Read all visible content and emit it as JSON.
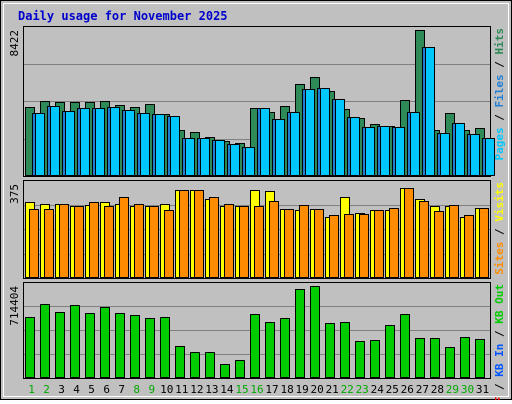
{
  "chart_data": {
    "type": "bar",
    "title": "Daily usage for November 2025",
    "categories": [
      "1",
      "2",
      "3",
      "4",
      "5",
      "6",
      "7",
      "8",
      "9",
      "10",
      "11",
      "12",
      "13",
      "14",
      "15",
      "16",
      "17",
      "18",
      "19",
      "20",
      "21",
      "22",
      "23",
      "24",
      "25",
      "26",
      "27",
      "28",
      "29",
      "30",
      "31"
    ],
    "weekend_days": [
      "1",
      "2",
      "8",
      "9",
      "15",
      "16",
      "22",
      "23",
      "29",
      "30"
    ],
    "panels": [
      {
        "id": "hits",
        "max_label": "8422",
        "ylim": [
          0,
          8422
        ],
        "series": [
          {
            "name": "Hits",
            "color": "#2e8b57",
            "values": [
              3910,
              4290,
              4190,
              4190,
              4190,
              4290,
              4040,
              3900,
              4090,
              3500,
              2640,
              2500,
              2200,
              1990,
              1860,
              3860,
              3660,
              4000,
              5260,
              5660,
              4810,
              3800,
              3300,
              2940,
              2860,
              4350,
              8320,
              2620,
              3570,
              2600,
              2740
            ]
          },
          {
            "name": "Files",
            "color": "#1f7fd6",
            "values": [
              3600,
              4010,
              3690,
              3890,
              3860,
              3930,
              3740,
              3610,
              3550,
              3420,
              2150,
              2160,
              2060,
              1820,
              1630,
              3860,
              3270,
              3660,
              4960,
              5020,
              4360,
              3360,
              2810,
              2820,
              2800,
              3650,
              7330,
              2450,
              3030,
              2410,
              2180
            ]
          },
          {
            "name": "Pages",
            "color": "#00c8ff",
            "values": [
              3600,
              4010,
              3690,
              3890,
              3860,
              3930,
              3740,
              3610,
              3550,
              3420,
              2150,
              2160,
              2060,
              1820,
              1630,
              3860,
              3270,
              3660,
              4960,
              5020,
              4360,
              3360,
              2810,
              2820,
              2800,
              3650,
              7330,
              2450,
              3030,
              2410,
              2180
            ]
          }
        ]
      },
      {
        "id": "visits",
        "max_label": "375",
        "ylim": [
          0,
          375
        ],
        "series": [
          {
            "name": "Visits",
            "color": "#ffff00",
            "values": [
              295,
              290,
              290,
              280,
              285,
              295,
              290,
              280,
              280,
              290,
              345,
              345,
              310,
              280,
              280,
              345,
              340,
              270,
              265,
              270,
              240,
              315,
              255,
              265,
              265,
              350,
              310,
              280,
              280,
              240,
              275
            ]
          },
          {
            "name": "Sites",
            "color": "#ff8c00",
            "values": [
              270,
              270,
              290,
              280,
              295,
              280,
              315,
              290,
              280,
              265,
              345,
              345,
              315,
              290,
              280,
              280,
              300,
              270,
              285,
              270,
              245,
              250,
              250,
              265,
              275,
              350,
              300,
              260,
              285,
              245,
              275
            ]
          }
        ]
      },
      {
        "id": "kbytes",
        "max_label": "714404",
        "ylim": [
          0,
          714404
        ],
        "series": [
          {
            "name": "KB F",
            "color": "#ff0000",
            "values": [
              0,
              0,
              0,
              0,
              0,
              0,
              0,
              0,
              0,
              0,
              0,
              0,
              0,
              0,
              0,
              0,
              0,
              0,
              0,
              0,
              0,
              0,
              0,
              0,
              0,
              0,
              0,
              0,
              0,
              0,
              0
            ]
          },
          {
            "name": "KB In",
            "color": "#0055ff",
            "values": [
              0,
              0,
              0,
              0,
              0,
              0,
              0,
              0,
              0,
              0,
              0,
              0,
              0,
              0,
              0,
              0,
              0,
              0,
              0,
              0,
              0,
              0,
              0,
              0,
              0,
              0,
              0,
              0,
              0,
              0,
              0
            ]
          },
          {
            "name": "KB Out",
            "color": "#00cc00",
            "values": [
              460000,
              561000,
              504000,
              558000,
              497000,
              541000,
              494000,
              479000,
              456000,
              464000,
              245000,
              198000,
              194000,
              110000,
              140000,
              489000,
              423000,
              457000,
              675000,
              700000,
              418000,
              427000,
              282000,
              290000,
              401000,
              484000,
              305000,
              307000,
              232000,
              315000,
              295000
            ]
          }
        ]
      }
    ],
    "side_labels": {
      "hits": [
        {
          "text": "Pages",
          "color": "#00c8ff"
        },
        {
          "text": " / ",
          "color": "#000000"
        },
        {
          "text": "Files",
          "color": "#1f7fd6"
        },
        {
          "text": " / ",
          "color": "#000000"
        },
        {
          "text": "Hits",
          "color": "#2e8b57"
        }
      ],
      "visits": [
        {
          "text": "Sites",
          "color": "#ff8c00"
        },
        {
          "text": " / ",
          "color": "#000000"
        },
        {
          "text": "Visits",
          "color": "#ffff00"
        }
      ],
      "kbytes": [
        {
          "text": "KB F",
          "color": "#ff0000"
        },
        {
          "text": " / ",
          "color": "#000000"
        },
        {
          "text": "KB In",
          "color": "#0055ff"
        },
        {
          "text": " / ",
          "color": "#000000"
        },
        {
          "text": "KB Out",
          "color": "#00cc00"
        }
      ]
    },
    "colors": {
      "title": "#0000cc",
      "panel_bg": "#c0c0c0",
      "grid": "#808080",
      "weekday_label": "#000000",
      "weekend_label": "#00aa00"
    },
    "grid": true
  }
}
